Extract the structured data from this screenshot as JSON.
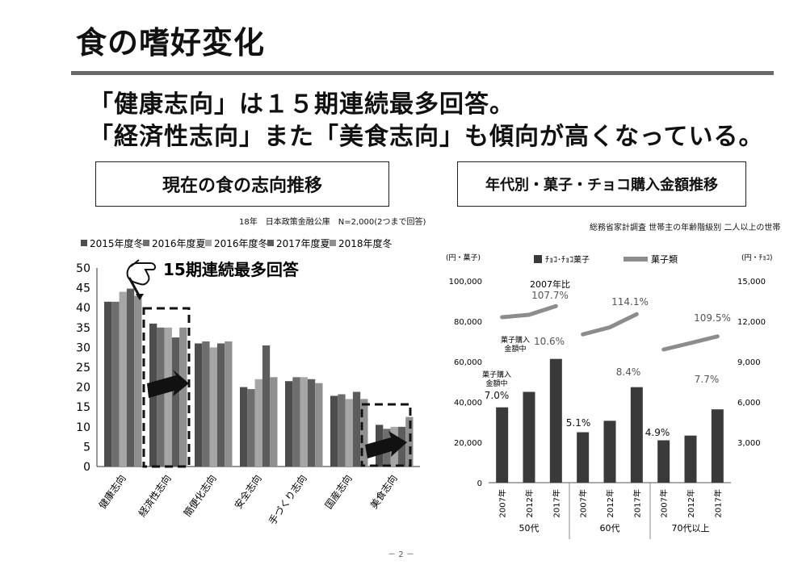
{
  "page": {
    "title": "食の嗜好変化",
    "headline_line1": "「健康志向」は１５期連続最多回答。",
    "headline_line2": "「経済性志向」また「美食志向」も傾向が高くなっている。",
    "page_number": "－ 2 －"
  },
  "left_chart": {
    "box_title": "現在の食の志向推移",
    "source": "18年　日本政策金融公庫　N=2,000(2つまで回答)",
    "annotation": "15期連続最多回答",
    "highlight_color": "#111111"
  },
  "right_chart": {
    "box_title": "年代別・菓子・チョコ購入金額推移",
    "source": "総務省家計調査 世帯主の年齢階級別 二人以上の世帯",
    "left_unit": "(円・菓子)",
    "right_unit": "(円・ﾁｮｺ)"
  },
  "chart_data": [
    {
      "type": "bar",
      "categories": [
        "健康志向",
        "経済性志向",
        "簡便化志向",
        "安全志向",
        "手づくり志向",
        "国産志向",
        "美食志向"
      ],
      "series": [
        {
          "name": "2015年度冬",
          "values": [
            41.5,
            36.0,
            31.0,
            20.0,
            21.5,
            17.8,
            10.5
          ],
          "color": "#4d4d4d"
        },
        {
          "name": "2016年度夏",
          "values": [
            41.5,
            35.0,
            31.5,
            19.5,
            22.5,
            18.2,
            9.5
          ],
          "color": "#6e6e6e"
        },
        {
          "name": "2016年度冬",
          "values": [
            44.0,
            35.0,
            30.0,
            22.0,
            22.5,
            17.0,
            10.0
          ],
          "color": "#a6a6a6"
        },
        {
          "name": "2017年度夏",
          "values": [
            44.8,
            32.5,
            31.0,
            30.5,
            22.0,
            18.8,
            10.0
          ],
          "color": "#5c5c5c"
        },
        {
          "name": "2018年度冬",
          "values": [
            43.0,
            35.0,
            31.5,
            22.5,
            21.0,
            17.0,
            12.5
          ],
          "color": "#8f8f8f"
        }
      ],
      "ylim": [
        0,
        50
      ],
      "yticks": [
        0,
        5,
        10,
        15,
        20,
        25,
        30,
        35,
        40,
        45,
        50
      ],
      "grid": false,
      "legend": "top"
    },
    {
      "type": "bar",
      "age_groups": [
        "50代",
        "60代",
        "70代以上"
      ],
      "categories": [
        "2007年",
        "2012年",
        "2017年",
        "2007年",
        "2012年",
        "2017年",
        "2007年",
        "2012年",
        "2017年"
      ],
      "series": [
        {
          "name": "ﾁｮｺ･ﾁｮｺ菓子",
          "axis": "right",
          "values": [
            5600,
            6750,
            9200,
            3750,
            4600,
            7100,
            3150,
            3500,
            5450
          ],
          "color": "#3a3a3a"
        },
        {
          "name": "菓子類",
          "axis": "left",
          "type": "line",
          "segments": [
            [
              82000,
              83200,
              87500
            ],
            [
              73500,
              77000,
              83500
            ],
            [
              66000,
              69200,
              72500
            ]
          ],
          "color": "#8c8c8c"
        }
      ],
      "ylim_left": [
        0,
        100000
      ],
      "yticks_left": [
        "0",
        "20,000",
        "40,000",
        "60,000",
        "80,000",
        "100,000"
      ],
      "ylim_right": [
        0,
        15000
      ],
      "yticks_right": [
        "3,000",
        "6,000",
        "9,000",
        "12,000",
        "15,000"
      ],
      "annotations": {
        "line_pct": [
          "107.7%",
          "114.1%",
          "109.5%"
        ],
        "line_lead": "2007年比",
        "bar_pct": [
          "7.0%",
          "10.6%",
          "5.1%",
          "8.4%",
          "4.9%",
          "7.7%"
        ],
        "bar_lead_1": "菓子購入",
        "bar_lead_2": "金額中"
      },
      "legend": "top"
    }
  ]
}
